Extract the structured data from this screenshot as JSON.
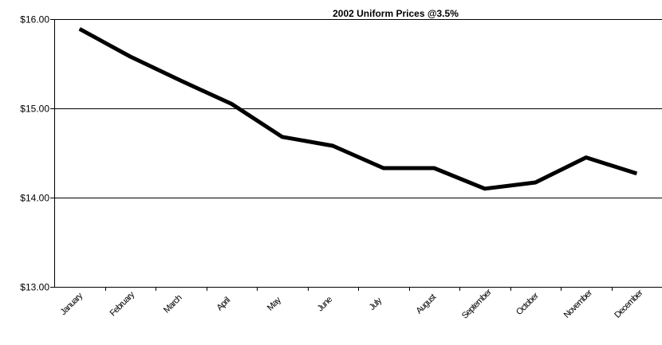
{
  "chart_data": {
    "type": "line",
    "title": "2002 Uniform Prices @3.5%",
    "xlabel": "",
    "ylabel": "",
    "categories": [
      "January",
      "February",
      "March",
      "April",
      "May",
      "June",
      "July",
      "August",
      "September",
      "October",
      "November",
      "December"
    ],
    "series": [
      {
        "values": [
          15.89,
          15.58,
          15.31,
          15.05,
          14.68,
          14.58,
          14.33,
          14.33,
          14.1,
          14.17,
          14.45,
          14.27
        ],
        "color": "#000000"
      }
    ],
    "ylim": [
      13.0,
      16.0
    ],
    "yticks": [
      "$16.00",
      "$15.00",
      "$14.00",
      "$13.00"
    ],
    "grid": true,
    "legend": "none"
  }
}
